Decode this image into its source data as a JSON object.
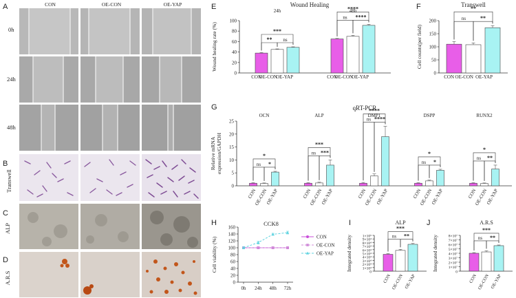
{
  "panels": [
    "A",
    "B",
    "C",
    "D",
    "E",
    "F",
    "G",
    "H",
    "I",
    "J"
  ],
  "micro": {
    "columns": [
      "CON",
      "OE-CON",
      "OE-YAP"
    ],
    "rows_A": [
      "0h",
      "24h",
      "48h"
    ],
    "row_B": "Transwell",
    "row_C": "ALP",
    "row_D": "A.R.S"
  },
  "colors": {
    "con": "#e85ee8",
    "oecon": "#ffffff",
    "oeyap": "#a8f3f3",
    "axis": "#333333"
  },
  "chart_data": [
    {
      "id": "E",
      "type": "bar",
      "title": "Wound Healing",
      "ylabel": "Wound healing rate (%)",
      "ylim": [
        0,
        100
      ],
      "yticks": [
        0,
        20,
        40,
        60,
        80,
        100
      ],
      "groups": [
        {
          "name": "24h",
          "categories": [
            "CON",
            "OE-CON",
            "OE-YAP"
          ],
          "values": [
            38,
            45,
            49
          ],
          "errors": [
            1,
            1,
            1
          ],
          "sig": [
            {
              "a": 0,
              "b": 1,
              "t": "**"
            },
            {
              "a": 1,
              "b": 2,
              "t": "ns"
            },
            {
              "a": 0,
              "b": 2,
              "t": "***"
            }
          ]
        },
        {
          "name": "48h",
          "categories": [
            "CON",
            "OE-CON",
            "OE-YAP"
          ],
          "values": [
            65,
            70,
            91
          ],
          "errors": [
            1,
            2,
            2
          ],
          "sig": [
            {
              "a": 0,
              "b": 1,
              "t": "ns"
            },
            {
              "a": 1,
              "b": 2,
              "t": "****"
            },
            {
              "a": 0,
              "b": 2,
              "t": "****"
            }
          ]
        }
      ]
    },
    {
      "id": "F",
      "type": "bar",
      "title": "Transwell",
      "ylabel": "Cell counts(per field)",
      "ylim": [
        0,
        200
      ],
      "yticks": [
        0,
        50,
        100,
        150,
        200
      ],
      "categories": [
        "CON",
        "OE-CON",
        "OE-YAP"
      ],
      "values": [
        110,
        108,
        173
      ],
      "errors": [
        10,
        7,
        8
      ],
      "sig": [
        {
          "a": 0,
          "b": 1,
          "t": "ns"
        },
        {
          "a": 1,
          "b": 2,
          "t": "**"
        },
        {
          "a": 0,
          "b": 2,
          "t": "**"
        }
      ]
    },
    {
      "id": "G",
      "type": "bar",
      "title": "qRT-PCR",
      "ylabel": "Relative mRNA expression/GAPDH",
      "ylim": [
        0,
        25
      ],
      "yticks": [
        0,
        5,
        10,
        15,
        20,
        25
      ],
      "groups": [
        {
          "name": "OCN",
          "categories": [
            "CON",
            "OE-CON",
            "OE-YAP"
          ],
          "values": [
            1,
            0.9,
            5.3
          ],
          "errors": [
            0.2,
            0.2,
            0.3
          ],
          "sig": [
            {
              "a": 0,
              "b": 1,
              "t": "ns"
            },
            {
              "a": 1,
              "b": 2,
              "t": "*"
            },
            {
              "a": 0,
              "b": 2,
              "t": "*"
            }
          ]
        },
        {
          "name": "ALP",
          "categories": [
            "CON",
            "OE-CON",
            "OE-YAP"
          ],
          "values": [
            1,
            1.1,
            8.0
          ],
          "errors": [
            0.2,
            0.3,
            2.0
          ],
          "sig": [
            {
              "a": 0,
              "b": 1,
              "t": "ns"
            },
            {
              "a": 1,
              "b": 2,
              "t": "***"
            },
            {
              "a": 0,
              "b": 2,
              "t": "***"
            }
          ]
        },
        {
          "name": "DMP1",
          "categories": [
            "CON",
            "OE-CON",
            "OE-YAP"
          ],
          "values": [
            1,
            3.8,
            19
          ],
          "errors": [
            0.3,
            0.8,
            4.0
          ],
          "sig": [
            {
              "a": 0,
              "b": 1,
              "t": "ns"
            },
            {
              "a": 1,
              "b": 2,
              "t": "****"
            },
            {
              "a": 0,
              "b": 2,
              "t": "****"
            }
          ]
        },
        {
          "name": "DSPP",
          "categories": [
            "CON",
            "OE-CON",
            "OE-YAP"
          ],
          "values": [
            1,
            1.9,
            6.0
          ],
          "errors": [
            0.2,
            0.3,
            0.4
          ],
          "sig": [
            {
              "a": 0,
              "b": 1,
              "t": "ns"
            },
            {
              "a": 1,
              "b": 2,
              "t": "*"
            },
            {
              "a": 0,
              "b": 2,
              "t": "*"
            }
          ]
        },
        {
          "name": "RUNX2",
          "categories": [
            "CON",
            "OE-CON",
            "OE-YAP"
          ],
          "values": [
            1,
            0.9,
            6.5
          ],
          "errors": [
            0.2,
            0.2,
            1.5
          ],
          "sig": [
            {
              "a": 0,
              "b": 1,
              "t": "ns"
            },
            {
              "a": 1,
              "b": 2,
              "t": "**"
            },
            {
              "a": 0,
              "b": 2,
              "t": "*"
            }
          ]
        }
      ]
    },
    {
      "id": "H",
      "type": "line",
      "title": "CCK8",
      "ylabel": "Cell viability (%)",
      "ylim": [
        0,
        160
      ],
      "yticks": [
        0,
        20,
        40,
        60,
        80,
        100,
        120,
        140,
        160
      ],
      "x": [
        "0h",
        "24h",
        "48h",
        "72h"
      ],
      "legend": "top-right",
      "series": [
        {
          "name": "CON",
          "values": [
            100,
            100,
            100,
            100
          ],
          "errors": [
            3,
            3,
            3,
            3
          ],
          "color": "#c94ed9"
        },
        {
          "name": "OE-CON",
          "values": [
            100,
            100,
            100,
            100
          ],
          "errors": [
            3,
            3,
            3,
            3
          ],
          "color": "#d08bd8"
        },
        {
          "name": "OE-YAP",
          "values": [
            100,
            115,
            139,
            144
          ],
          "errors": [
            3,
            4,
            3,
            4
          ],
          "color": "#5fd3e0"
        }
      ]
    },
    {
      "id": "I",
      "type": "bar",
      "title": "ALP",
      "ylabel": "Integrated density",
      "ylim": [
        0,
        100000
      ],
      "yticks": [
        0,
        10000,
        20000,
        30000,
        40000,
        50000,
        60000,
        70000,
        80000,
        90000,
        100000
      ],
      "yticklabels": [
        "0",
        "1×10⁴",
        "2×10⁴",
        "3×10⁴",
        "4×10⁴",
        "5×10⁴",
        "6×10⁴",
        "7×10⁴",
        "8×10⁴",
        "9×10⁴",
        "1×10⁵"
      ],
      "categories": [
        "CON",
        "OE-CON",
        "OE-YAP"
      ],
      "values": [
        47000,
        58000,
        75000
      ],
      "errors": [
        2000,
        3000,
        2500
      ],
      "sig": [
        {
          "a": 0,
          "b": 1,
          "t": "ns"
        },
        {
          "a": 1,
          "b": 2,
          "t": "**"
        },
        {
          "a": 0,
          "b": 2,
          "t": "***"
        }
      ]
    },
    {
      "id": "J",
      "type": "bar",
      "title": "A.R.S",
      "ylabel": "Integrated density",
      "ylim": [
        0,
        80000000
      ],
      "yticks": [
        0,
        10000000,
        20000000,
        30000000,
        40000000,
        50000000,
        60000000,
        70000000,
        80000000
      ],
      "yticklabels": [
        "0",
        "1×10⁷",
        "2×10⁷",
        "3×10⁷",
        "4×10⁷",
        "5×10⁷",
        "6×10⁷",
        "7×10⁷",
        "8×10⁷"
      ],
      "categories": [
        "CON",
        "OE-CON",
        "OE-YAP"
      ],
      "values": [
        40000000,
        43000000,
        57000000
      ],
      "errors": [
        1500000,
        2500000,
        1500000
      ],
      "sig": [
        {
          "a": 0,
          "b": 1,
          "t": "ns"
        },
        {
          "a": 1,
          "b": 2,
          "t": "**"
        },
        {
          "a": 0,
          "b": 2,
          "t": "***"
        }
      ]
    }
  ]
}
